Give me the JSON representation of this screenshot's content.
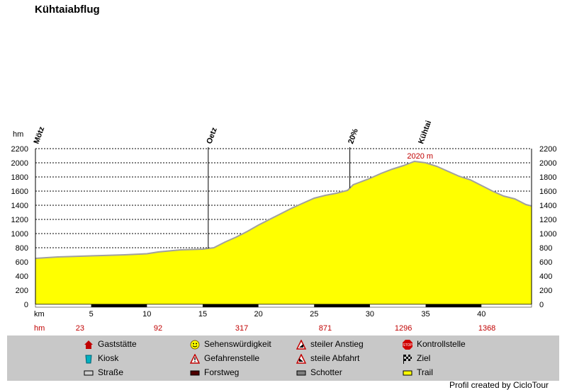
{
  "title": "Kühtaiabflug",
  "chart_data": {
    "type": "area",
    "title": "Kühtaiabflug",
    "xlabel": "km",
    "ylabel": "hm",
    "xlim": [
      0,
      44.5
    ],
    "ylim": [
      0,
      2200
    ],
    "x_ticks": [
      5,
      10,
      15,
      20,
      25,
      30,
      35,
      40
    ],
    "y_ticks": [
      0,
      200,
      400,
      600,
      800,
      1000,
      1200,
      1400,
      1600,
      1800,
      2000,
      2200
    ],
    "fill_color": "#ffff00",
    "line_color": "#a0a0a0",
    "grid": true,
    "profile": [
      [
        0,
        650
      ],
      [
        2,
        670
      ],
      [
        4,
        680
      ],
      [
        6,
        690
      ],
      [
        8,
        700
      ],
      [
        10,
        715
      ],
      [
        11,
        740
      ],
      [
        13,
        770
      ],
      [
        15,
        780
      ],
      [
        15.5,
        790
      ],
      [
        16,
        800
      ],
      [
        17,
        880
      ],
      [
        18,
        950
      ],
      [
        19,
        1030
      ],
      [
        20,
        1120
      ],
      [
        21,
        1200
      ],
      [
        22,
        1280
      ],
      [
        23,
        1360
      ],
      [
        24,
        1430
      ],
      [
        25,
        1500
      ],
      [
        26,
        1540
      ],
      [
        27,
        1570
      ],
      [
        28,
        1610
      ],
      [
        28.5,
        1690
      ],
      [
        29,
        1720
      ],
      [
        30,
        1780
      ],
      [
        31,
        1850
      ],
      [
        32,
        1910
      ],
      [
        33,
        1960
      ],
      [
        34,
        2020
      ],
      [
        35,
        2000
      ],
      [
        36,
        1950
      ],
      [
        37,
        1880
      ],
      [
        38,
        1810
      ],
      [
        39,
        1760
      ],
      [
        40,
        1680
      ],
      [
        41,
        1600
      ],
      [
        42,
        1530
      ],
      [
        43,
        1490
      ],
      [
        44,
        1410
      ],
      [
        44.5,
        1390
      ]
    ],
    "waypoints": [
      {
        "label": "Mötz",
        "km": 0,
        "line": false
      },
      {
        "label": "Oetz",
        "km": 15.5,
        "line": true
      },
      {
        "label": "20%",
        "km": 28.2,
        "line": true
      },
      {
        "label": "Kühtai",
        "km": 34.5,
        "line": false
      }
    ],
    "peak_annotation": {
      "text": "2020 m",
      "km": 34.5,
      "elevation": 2020
    },
    "segments": [
      {
        "from": 5,
        "to": 10,
        "type": "Forstweg"
      },
      {
        "from": 15,
        "to": 20,
        "type": "Forstweg"
      },
      {
        "from": 25,
        "to": 30,
        "type": "Forstweg"
      },
      {
        "from": 35,
        "to": 40,
        "type": "Forstweg"
      }
    ],
    "cumulative_hm": [
      {
        "km": 4,
        "value": "23"
      },
      {
        "km": 11,
        "value": "92"
      },
      {
        "km": 18.5,
        "value": "317"
      },
      {
        "km": 26,
        "value": "871"
      },
      {
        "km": 33,
        "value": "1296"
      },
      {
        "km": 40.5,
        "value": "1368"
      }
    ]
  },
  "legend": [
    {
      "label": "Gaststätte",
      "icon": "house-icon"
    },
    {
      "label": "Sehenswürdigkeit",
      "icon": "smiley-icon"
    },
    {
      "label": "steiler Anstieg",
      "icon": "climb-warning-icon"
    },
    {
      "label": "Kontrollstelle",
      "icon": "stop-sign-icon"
    },
    {
      "label": "Kiosk",
      "icon": "cup-icon"
    },
    {
      "label": "Gefahrenstelle",
      "icon": "danger-warning-icon"
    },
    {
      "label": "steile Abfahrt",
      "icon": "descent-warning-icon"
    },
    {
      "label": "Ziel",
      "icon": "checkered-flag-icon"
    },
    {
      "label": "Straße",
      "icon": "road-swatch",
      "color": "#d0d0d0"
    },
    {
      "label": "Forstweg",
      "icon": "forest-road-swatch",
      "color": "#500000"
    },
    {
      "label": "Schotter",
      "icon": "gravel-swatch",
      "color": "#808080"
    },
    {
      "label": "Trail",
      "icon": "trail-swatch",
      "color": "#ffff00"
    }
  ],
  "credit": "Profil created by CicloTour"
}
